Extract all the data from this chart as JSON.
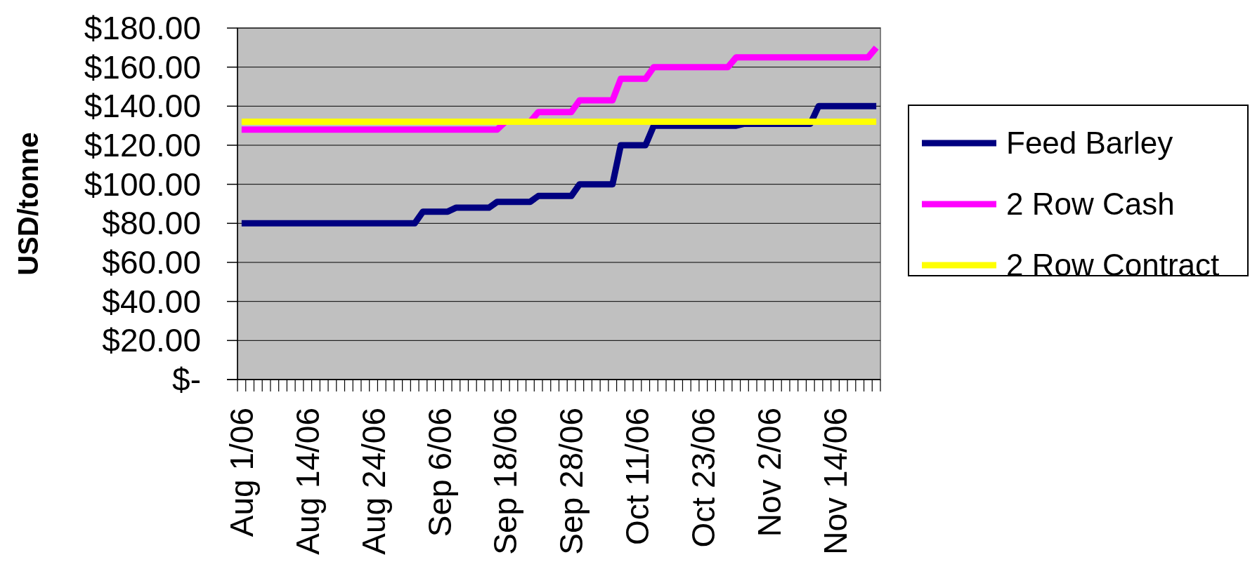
{
  "chart_data": {
    "type": "line",
    "ylabel": "USD/tonne",
    "categories": [
      "Aug 1/06",
      null,
      null,
      null,
      null,
      null,
      null,
      null,
      "Aug 14/06",
      null,
      null,
      null,
      null,
      null,
      null,
      null,
      "Aug 24/06",
      null,
      null,
      null,
      null,
      null,
      null,
      null,
      "Sep 6/06",
      null,
      null,
      null,
      null,
      null,
      null,
      null,
      "Sep 18/06",
      null,
      null,
      null,
      null,
      null,
      null,
      null,
      "Sep 28/06",
      null,
      null,
      null,
      null,
      null,
      null,
      null,
      "Oct 11/06",
      null,
      null,
      null,
      null,
      null,
      null,
      null,
      "Oct 23/06",
      null,
      null,
      null,
      null,
      null,
      null,
      null,
      "Nov 2/06",
      null,
      null,
      null,
      null,
      null,
      null,
      null,
      "Nov 14/06",
      null,
      null,
      null,
      null,
      null
    ],
    "series": [
      {
        "name": "Feed Barley",
        "color": "#000080",
        "values": [
          80,
          80,
          80,
          80,
          80,
          80,
          80,
          80,
          80,
          80,
          80,
          80,
          80,
          80,
          80,
          80,
          80,
          80,
          80,
          80,
          80,
          80,
          86,
          86,
          86,
          86,
          88,
          88,
          88,
          88,
          88,
          91,
          91,
          91,
          91,
          91,
          94,
          94,
          94,
          94,
          94,
          100,
          100,
          100,
          100,
          100,
          120,
          120,
          120,
          120,
          130,
          130,
          130,
          130,
          130,
          130,
          130,
          130,
          130,
          130,
          130,
          131,
          131,
          131,
          131,
          131,
          131,
          131,
          131,
          131,
          140,
          140,
          140,
          140,
          140,
          140,
          140,
          140
        ]
      },
      {
        "name": "2 Row Cash",
        "color": "#ff00ff",
        "values": [
          128,
          128,
          128,
          128,
          128,
          128,
          128,
          128,
          128,
          128,
          128,
          128,
          128,
          128,
          128,
          128,
          128,
          128,
          128,
          128,
          128,
          128,
          128,
          128,
          128,
          128,
          128,
          128,
          128,
          128,
          128,
          128,
          132,
          null,
          null,
          132,
          137,
          137,
          137,
          137,
          137,
          143,
          143,
          143,
          143,
          143,
          154,
          154,
          154,
          154,
          160,
          160,
          160,
          160,
          160,
          160,
          160,
          160,
          160,
          160,
          165,
          165,
          165,
          165,
          165,
          165,
          165,
          165,
          165,
          165,
          165,
          165,
          165,
          165,
          165,
          165,
          165,
          170
        ]
      },
      {
        "name": "2 Row Contract",
        "color": "#ffff00",
        "values": [
          132,
          132,
          132,
          132,
          132,
          132,
          132,
          132,
          132,
          132,
          132,
          132,
          132,
          132,
          132,
          132,
          132,
          132,
          132,
          132,
          132,
          132,
          132,
          132,
          132,
          132,
          132,
          132,
          132,
          132,
          132,
          132,
          132,
          132,
          132,
          132,
          132,
          132,
          132,
          132,
          132,
          132,
          132,
          132,
          132,
          132,
          132,
          132,
          132,
          132,
          132,
          132,
          132,
          132,
          132,
          132,
          132,
          132,
          132,
          132,
          132,
          132,
          132,
          132,
          132,
          132,
          132,
          132,
          132,
          132,
          132,
          132,
          132,
          132,
          132,
          132,
          132,
          132
        ]
      }
    ],
    "ylim": [
      0,
      180
    ],
    "yticks": [
      {
        "value": 0,
        "label": "$-"
      },
      {
        "value": 20,
        "label": "$20.00"
      },
      {
        "value": 40,
        "label": "$40.00"
      },
      {
        "value": 60,
        "label": "$60.00"
      },
      {
        "value": 80,
        "label": "$80.00"
      },
      {
        "value": 100,
        "label": "$100.00"
      },
      {
        "value": 120,
        "label": "$120.00"
      },
      {
        "value": 140,
        "label": "$140.00"
      },
      {
        "value": 160,
        "label": "$160.00"
      },
      {
        "value": 180,
        "label": "$180.00"
      }
    ],
    "grid": "y",
    "legend": "right",
    "marker": "none",
    "line_style": "solid"
  }
}
